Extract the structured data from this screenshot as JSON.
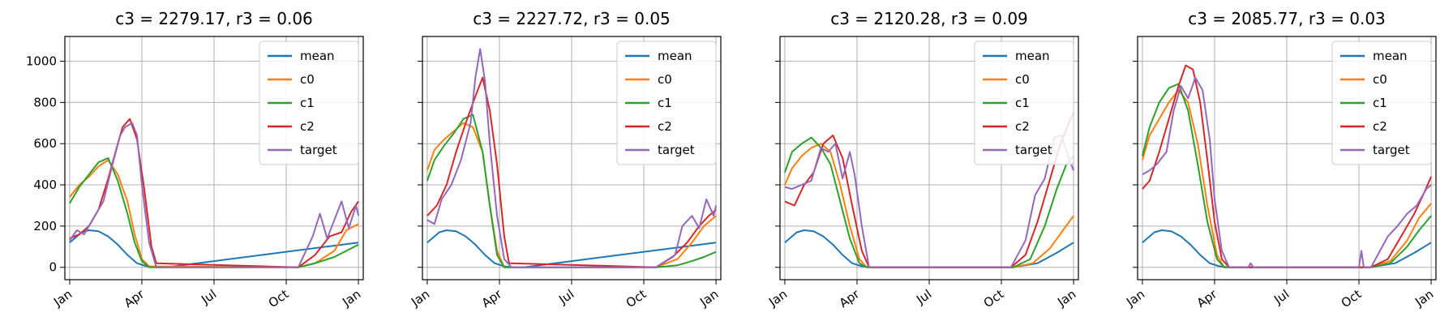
{
  "colors": {
    "mean": "#1f77b4",
    "c0": "#ff7f0e",
    "c1": "#2ca02c",
    "c2": "#d62728",
    "target": "#9467bd"
  },
  "chart_data": [
    {
      "type": "line",
      "title": "c3 = 2279.17, r3 = 0.06",
      "xticks": [
        "Jan",
        "Apr",
        "Jul",
        "Oct",
        "Jan"
      ],
      "yticks": [
        0,
        200,
        400,
        600,
        800,
        1000
      ],
      "ylim": [
        -60,
        1120
      ],
      "xlim": [
        -0.2,
        12.2
      ],
      "grid": true,
      "legend_position": "upper right",
      "series": [
        {
          "name": "mean",
          "x": [
            0,
            0.5,
            0.8,
            1.2,
            1.6,
            2.0,
            2.4,
            2.8,
            3.2,
            3.6,
            4,
            12
          ],
          "y": [
            120,
            170,
            180,
            175,
            150,
            110,
            60,
            20,
            5,
            0,
            0,
            120
          ]
        },
        {
          "name": "c0",
          "x": [
            0,
            0.4,
            0.8,
            1.2,
            1.6,
            2.0,
            2.4,
            2.7,
            3.0,
            3.3,
            9.5,
            10.2,
            11,
            11.5,
            12
          ],
          "y": [
            340,
            400,
            440,
            490,
            520,
            450,
            320,
            160,
            40,
            5,
            0,
            20,
            80,
            180,
            210
          ]
        },
        {
          "name": "c1",
          "x": [
            0,
            0.4,
            0.8,
            1.2,
            1.6,
            2.0,
            2.4,
            2.7,
            3.0,
            3.3,
            9.5,
            10.2,
            11,
            11.5,
            12
          ],
          "y": [
            310,
            390,
            450,
            510,
            530,
            420,
            260,
            120,
            30,
            0,
            0,
            20,
            50,
            80,
            110
          ]
        },
        {
          "name": "c2",
          "x": [
            0,
            0.4,
            0.8,
            1.2,
            1.6,
            2.0,
            2.2,
            2.5,
            2.8,
            3.1,
            3.4,
            3.6,
            9.5,
            10.2,
            10.8,
            11.3,
            11.7,
            12
          ],
          "y": [
            140,
            160,
            200,
            280,
            430,
            600,
            680,
            720,
            620,
            380,
            100,
            20,
            0,
            60,
            150,
            170,
            270,
            320
          ]
        },
        {
          "name": "target",
          "x": [
            0,
            0.3,
            0.6,
            1.0,
            1.4,
            1.8,
            2.1,
            2.3,
            2.6,
            2.8,
            3.0,
            3.3,
            3.6,
            9.5,
            10.1,
            10.4,
            10.7,
            11.0,
            11.3,
            11.6,
            11.9,
            12
          ],
          "y": [
            130,
            180,
            160,
            240,
            320,
            510,
            640,
            680,
            700,
            640,
            400,
            120,
            0,
            0,
            150,
            260,
            140,
            230,
            320,
            190,
            300,
            250
          ]
        }
      ]
    },
    {
      "type": "line",
      "title": "c3 = 2227.72, r3 = 0.05",
      "xticks": [
        "Jan",
        "Apr",
        "Jul",
        "Oct",
        "Jan"
      ],
      "yticks": [
        0,
        200,
        400,
        600,
        800,
        1000
      ],
      "ylim": [
        -60,
        1120
      ],
      "xlim": [
        -0.2,
        12.2
      ],
      "grid": true,
      "legend_position": "upper right",
      "series": [
        {
          "name": "mean",
          "x": [
            0,
            0.5,
            0.8,
            1.2,
            1.6,
            2.0,
            2.4,
            2.8,
            3.2,
            3.6,
            4,
            12
          ],
          "y": [
            120,
            170,
            180,
            175,
            150,
            110,
            60,
            20,
            5,
            0,
            0,
            120
          ]
        },
        {
          "name": "c0",
          "x": [
            0,
            0.3,
            0.7,
            1.1,
            1.5,
            1.9,
            2.3,
            2.6,
            2.9,
            3.2,
            9.5,
            10.4,
            11,
            11.5,
            12
          ],
          "y": [
            470,
            570,
            620,
            660,
            700,
            680,
            560,
            300,
            80,
            0,
            0,
            40,
            120,
            200,
            250
          ]
        },
        {
          "name": "c1",
          "x": [
            0,
            0.3,
            0.7,
            1.1,
            1.5,
            1.9,
            2.3,
            2.6,
            2.9,
            3.2,
            9.5,
            10.4,
            11,
            11.5,
            12
          ],
          "y": [
            420,
            520,
            590,
            650,
            720,
            740,
            560,
            300,
            60,
            0,
            0,
            10,
            30,
            50,
            75
          ]
        },
        {
          "name": "c2",
          "x": [
            0,
            0.4,
            0.8,
            1.2,
            1.6,
            2.0,
            2.3,
            2.6,
            2.9,
            3.2,
            3.4,
            9.5,
            10.2,
            10.8,
            11.3,
            11.7,
            12
          ],
          "y": [
            250,
            300,
            400,
            560,
            700,
            830,
            920,
            760,
            500,
            150,
            20,
            0,
            50,
            120,
            200,
            250,
            280
          ]
        },
        {
          "name": "target",
          "x": [
            0,
            0.3,
            0.6,
            1.0,
            1.4,
            1.8,
            2.0,
            2.2,
            2.4,
            2.6,
            2.9,
            3.2,
            3.5,
            9.5,
            10.3,
            10.6,
            11.0,
            11.3,
            11.6,
            11.9,
            12
          ],
          "y": [
            230,
            210,
            330,
            400,
            520,
            700,
            920,
            1060,
            900,
            600,
            250,
            40,
            0,
            0,
            60,
            200,
            250,
            190,
            330,
            250,
            300
          ]
        }
      ]
    },
    {
      "type": "line",
      "title": "c3 = 2120.28, r3 = 0.09",
      "xticks": [
        "Jan",
        "Apr",
        "Jul",
        "Oct",
        "Jan"
      ],
      "yticks": [
        0,
        200,
        400,
        600,
        800,
        1000
      ],
      "ylim": [
        -60,
        1120
      ],
      "xlim": [
        -0.2,
        12.2
      ],
      "grid": true,
      "legend_position": "upper right",
      "series": [
        {
          "name": "mean",
          "x": [
            0,
            0.5,
            0.8,
            1.2,
            1.6,
            2.0,
            2.4,
            2.8,
            3.2,
            3.6,
            4,
            9.5,
            10.5,
            11.3,
            12
          ],
          "y": [
            120,
            170,
            180,
            175,
            150,
            110,
            60,
            20,
            5,
            0,
            0,
            0,
            20,
            70,
            120
          ]
        },
        {
          "name": "c0",
          "x": [
            0,
            0.3,
            0.7,
            1.1,
            1.5,
            1.9,
            2.3,
            2.7,
            3.1,
            3.4,
            9.5,
            10.3,
            11,
            11.5,
            12
          ],
          "y": [
            400,
            480,
            540,
            580,
            600,
            560,
            400,
            200,
            40,
            0,
            0,
            20,
            90,
            170,
            250
          ]
        },
        {
          "name": "c1",
          "x": [
            0,
            0.3,
            0.7,
            1.1,
            1.5,
            1.9,
            2.3,
            2.7,
            3.1,
            3.4,
            9.5,
            10.2,
            10.8,
            11.3,
            11.7,
            12
          ],
          "y": [
            460,
            560,
            600,
            630,
            580,
            500,
            320,
            140,
            20,
            0,
            0,
            40,
            200,
            380,
            500,
            540
          ]
        },
        {
          "name": "c2",
          "x": [
            0,
            0.4,
            0.8,
            1.2,
            1.6,
            2.0,
            2.4,
            2.8,
            3.2,
            3.5,
            9.4,
            10.0,
            10.5,
            11.0,
            11.4,
            11.8,
            12
          ],
          "y": [
            320,
            300,
            400,
            460,
            600,
            640,
            530,
            300,
            80,
            0,
            0,
            60,
            220,
            420,
            580,
            700,
            750
          ]
        },
        {
          "name": "target",
          "x": [
            0,
            0.3,
            0.7,
            1.1,
            1.5,
            1.8,
            2.1,
            2.4,
            2.7,
            2.9,
            3.2,
            3.5,
            9.4,
            10.0,
            10.4,
            10.8,
            11.2,
            11.5,
            11.8,
            12
          ],
          "y": [
            390,
            380,
            400,
            420,
            580,
            560,
            600,
            430,
            560,
            450,
            200,
            0,
            0,
            130,
            350,
            430,
            630,
            640,
            530,
            470
          ]
        }
      ]
    },
    {
      "type": "line",
      "title": "c3 = 2085.77, r3 = 0.03",
      "xticks": [
        "Jan",
        "Apr",
        "Jul",
        "Oct",
        "Jan"
      ],
      "yticks": [
        0,
        200,
        400,
        600,
        800,
        1000
      ],
      "ylim": [
        -60,
        1120
      ],
      "xlim": [
        -0.2,
        12.2
      ],
      "grid": true,
      "legend_position": "upper right",
      "series": [
        {
          "name": "mean",
          "x": [
            0,
            0.5,
            0.8,
            1.2,
            1.6,
            2.0,
            2.4,
            2.8,
            3.2,
            3.6,
            4,
            9.5,
            10.5,
            11.3,
            12
          ],
          "y": [
            120,
            170,
            180,
            175,
            150,
            110,
            60,
            20,
            5,
            0,
            0,
            0,
            20,
            70,
            120
          ]
        },
        {
          "name": "c0",
          "x": [
            0,
            0.3,
            0.7,
            1.1,
            1.5,
            1.9,
            2.3,
            2.7,
            3.1,
            3.4,
            9.5,
            10.3,
            11,
            11.5,
            12
          ],
          "y": [
            520,
            640,
            720,
            800,
            860,
            800,
            600,
            300,
            60,
            0,
            0,
            30,
            130,
            240,
            310
          ]
        },
        {
          "name": "c1",
          "x": [
            0,
            0.3,
            0.7,
            1.1,
            1.5,
            1.9,
            2.3,
            2.7,
            3.1,
            3.4,
            9.5,
            10.3,
            11,
            11.5,
            12
          ],
          "y": [
            540,
            680,
            800,
            870,
            890,
            760,
            500,
            220,
            40,
            0,
            0,
            20,
            100,
            180,
            250
          ]
        },
        {
          "name": "c2",
          "x": [
            0,
            0.3,
            0.7,
            1.1,
            1.5,
            1.8,
            2.1,
            2.4,
            2.7,
            3.0,
            3.3,
            3.6,
            9.5,
            10.2,
            10.8,
            11.3,
            11.7,
            12
          ],
          "y": [
            380,
            420,
            560,
            720,
            880,
            980,
            960,
            800,
            520,
            220,
            40,
            0,
            0,
            40,
            160,
            260,
            360,
            440
          ]
        },
        {
          "name": "target",
          "x": [
            0,
            0.3,
            0.6,
            1.0,
            1.3,
            1.6,
            1.9,
            2.2,
            2.5,
            2.8,
            3.0,
            3.3,
            3.6,
            4.4,
            4.5,
            4.6,
            9.0,
            9.1,
            9.2,
            9.5,
            10.2,
            10.6,
            11.0,
            11.4,
            11.8,
            12
          ],
          "y": [
            450,
            470,
            500,
            560,
            760,
            880,
            820,
            920,
            860,
            620,
            330,
            80,
            0,
            0,
            20,
            0,
            0,
            80,
            0,
            0,
            150,
            200,
            260,
            300,
            380,
            400
          ]
        }
      ]
    }
  ]
}
